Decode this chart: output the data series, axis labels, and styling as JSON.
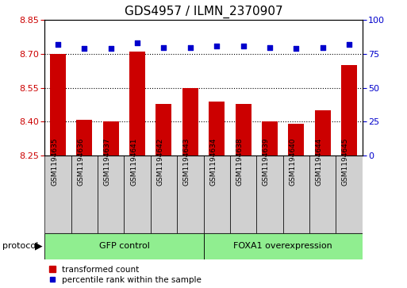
{
  "title": "GDS4957 / ILMN_2370907",
  "samples": [
    "GSM1194635",
    "GSM1194636",
    "GSM1194637",
    "GSM1194641",
    "GSM1194642",
    "GSM1194643",
    "GSM1194634",
    "GSM1194638",
    "GSM1194639",
    "GSM1194640",
    "GSM1194644",
    "GSM1194645"
  ],
  "transformed_counts": [
    8.7,
    8.41,
    8.4,
    8.71,
    8.48,
    8.55,
    8.49,
    8.48,
    8.4,
    8.39,
    8.45,
    8.65
  ],
  "percentile_ranks": [
    82,
    79,
    79,
    83,
    80,
    80,
    81,
    81,
    80,
    79,
    80,
    82
  ],
  "ylim_left": [
    8.25,
    8.85
  ],
  "ylim_right": [
    0,
    100
  ],
  "yticks_left": [
    8.25,
    8.4,
    8.55,
    8.7,
    8.85
  ],
  "yticks_right": [
    0,
    25,
    50,
    75,
    100
  ],
  "hlines": [
    8.4,
    8.55,
    8.7
  ],
  "bar_color": "#cc0000",
  "dot_color": "#0000cc",
  "bar_width": 0.6,
  "group1_label": "GFP control",
  "group2_label": "FOXA1 overexpression",
  "group1_count": 6,
  "group2_count": 6,
  "protocol_label": "protocol",
  "legend_bar_label": "transformed count",
  "legend_dot_label": "percentile rank within the sample",
  "green_color": "#90ee90",
  "gray_color": "#d0d0d0",
  "title_fontsize": 11,
  "tick_fontsize": 8,
  "sample_fontsize": 6.5,
  "group_fontsize": 8,
  "legend_fontsize": 7.5
}
